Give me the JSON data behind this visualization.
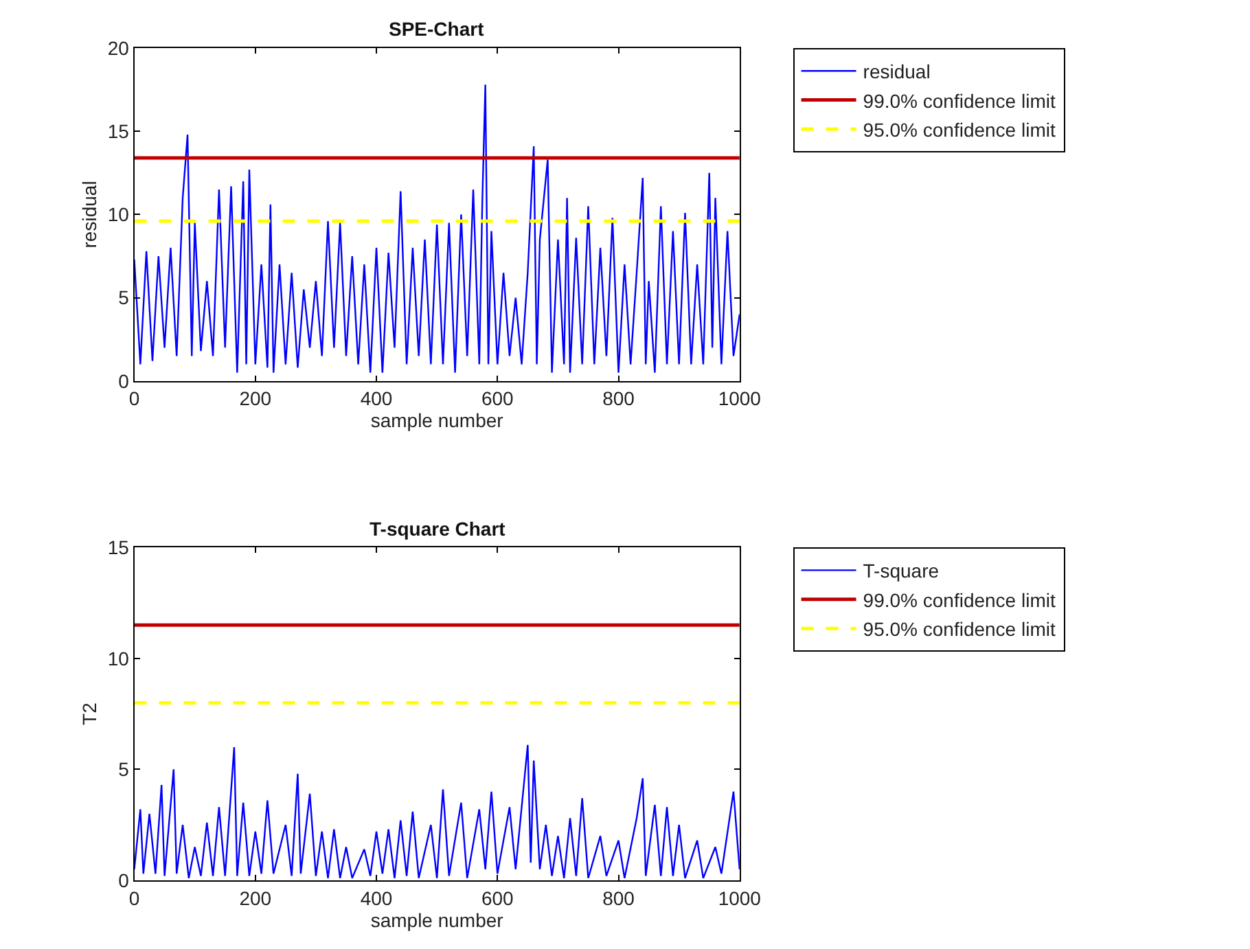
{
  "chart_data": [
    {
      "type": "line",
      "title": "SPE-Chart",
      "xlabel": "sample number",
      "ylabel": "residual",
      "xlim": [
        0,
        1000
      ],
      "xticks": [
        0,
        200,
        400,
        600,
        800,
        1000
      ],
      "ylim": [
        0,
        20
      ],
      "yticks": [
        0,
        5,
        10,
        15,
        20
      ],
      "legend": "right",
      "marker": "none",
      "series": [
        {
          "name": "residual",
          "color": "#0000ff",
          "line_style": "solid",
          "x": [
            0,
            10,
            20,
            30,
            40,
            50,
            60,
            70,
            80,
            88,
            95,
            100,
            110,
            120,
            130,
            140,
            150,
            160,
            170,
            180,
            185,
            190,
            200,
            210,
            220,
            225,
            230,
            240,
            250,
            260,
            270,
            280,
            290,
            300,
            310,
            320,
            330,
            340,
            350,
            360,
            370,
            380,
            390,
            400,
            410,
            420,
            430,
            440,
            450,
            460,
            470,
            480,
            490,
            500,
            510,
            520,
            530,
            540,
            550,
            560,
            570,
            575,
            580,
            585,
            590,
            600,
            610,
            620,
            630,
            640,
            650,
            660,
            665,
            670,
            683,
            690,
            700,
            710,
            715,
            720,
            730,
            740,
            750,
            760,
            770,
            780,
            790,
            800,
            810,
            820,
            830,
            840,
            845,
            850,
            860,
            870,
            880,
            890,
            900,
            910,
            920,
            930,
            940,
            950,
            955,
            960,
            970,
            980,
            990,
            1000
          ],
          "values": [
            7.3,
            1,
            7.8,
            1.2,
            7.5,
            2,
            8,
            1.5,
            11,
            14.8,
            1.5,
            9.5,
            1.8,
            6,
            1.5,
            11.5,
            2,
            11.7,
            0.5,
            12,
            1,
            12.7,
            1,
            7,
            0.8,
            10.6,
            0.5,
            7,
            1,
            6.5,
            0.8,
            5.5,
            2,
            6,
            1.5,
            9.6,
            2,
            9.5,
            1.5,
            7.5,
            1,
            7,
            0.5,
            8,
            0.5,
            7.7,
            2,
            11.4,
            1,
            8,
            1.5,
            8.5,
            1,
            9.4,
            1,
            9.5,
            0.5,
            10,
            1.5,
            11.5,
            1,
            10.8,
            17.8,
            1,
            9,
            1,
            6.5,
            1.5,
            5,
            1,
            6.5,
            14.1,
            1,
            8.5,
            13.3,
            0.5,
            8.5,
            1,
            11,
            0.5,
            8.6,
            1,
            10.5,
            1,
            8,
            1.5,
            9.8,
            0.5,
            7,
            1,
            6.5,
            12.2,
            1,
            6,
            0.5,
            10.5,
            1,
            9,
            1,
            10.1,
            1,
            7,
            1,
            12.5,
            2,
            11,
            1,
            9,
            1.5,
            4
          ]
        },
        {
          "name": "99.0% confidence limit",
          "color": "#c00000",
          "line_style": "solid",
          "x": [
            0,
            1000
          ],
          "values": [
            13.4,
            13.4
          ]
        },
        {
          "name": "95.0% confidence limit",
          "color": "#ffff00",
          "line_style": "dashed",
          "x": [
            0,
            1000
          ],
          "values": [
            9.6,
            9.6
          ]
        }
      ]
    },
    {
      "type": "line",
      "title": "T-square Chart",
      "xlabel": "sample number",
      "ylabel": "T2",
      "xlim": [
        0,
        1000
      ],
      "xticks": [
        0,
        200,
        400,
        600,
        800,
        1000
      ],
      "ylim": [
        0,
        15
      ],
      "yticks": [
        0,
        5,
        10,
        15
      ],
      "legend": "right",
      "marker": "none",
      "series": [
        {
          "name": "T-square",
          "color": "#0000ff",
          "line_style": "solid",
          "x": [
            0,
            10,
            15,
            25,
            35,
            45,
            50,
            65,
            70,
            80,
            90,
            100,
            110,
            120,
            130,
            140,
            150,
            165,
            170,
            180,
            190,
            200,
            210,
            220,
            230,
            250,
            260,
            270,
            275,
            290,
            300,
            310,
            320,
            330,
            340,
            350,
            360,
            380,
            390,
            400,
            410,
            420,
            430,
            440,
            450,
            460,
            470,
            490,
            500,
            510,
            520,
            540,
            550,
            570,
            580,
            590,
            600,
            620,
            630,
            650,
            655,
            660,
            670,
            680,
            690,
            700,
            710,
            720,
            730,
            740,
            750,
            770,
            780,
            800,
            810,
            830,
            840,
            845,
            860,
            870,
            880,
            890,
            900,
            910,
            930,
            940,
            960,
            970,
            990,
            1000
          ],
          "values": [
            0.5,
            3.2,
            0.3,
            3,
            0.3,
            4.3,
            0.2,
            5,
            0.3,
            2.5,
            0.1,
            1.5,
            0.2,
            2.6,
            0.2,
            3.3,
            0.2,
            6,
            0.2,
            3.5,
            0.2,
            2.2,
            0.3,
            3.6,
            0.3,
            2.5,
            0.2,
            4.8,
            0.3,
            3.9,
            0.2,
            2.2,
            0.1,
            2.3,
            0.1,
            1.5,
            0.1,
            1.4,
            0.2,
            2.2,
            0.3,
            2.3,
            0.1,
            2.7,
            0.2,
            3.1,
            0.1,
            2.5,
            0.1,
            4.1,
            0.2,
            3.5,
            0.1,
            3.2,
            0.5,
            4,
            0.3,
            3.3,
            0.5,
            6.1,
            0.8,
            5.4,
            0.5,
            2.5,
            0.2,
            2,
            0.1,
            2.8,
            0.2,
            3.7,
            0.1,
            2,
            0.2,
            1.8,
            0.1,
            2.8,
            4.6,
            0.2,
            3.4,
            0.2,
            3.3,
            0.2,
            2.5,
            0.1,
            1.8,
            0.1,
            1.5,
            0.3,
            4,
            0.5
          ]
        },
        {
          "name": "99.0% confidence limit",
          "color": "#c00000",
          "line_style": "solid",
          "x": [
            0,
            1000
          ],
          "values": [
            11.5,
            11.5
          ]
        },
        {
          "name": "95.0% confidence limit",
          "color": "#ffff00",
          "line_style": "dashed",
          "x": [
            0,
            1000
          ],
          "values": [
            8.0,
            8.0
          ]
        }
      ]
    }
  ]
}
